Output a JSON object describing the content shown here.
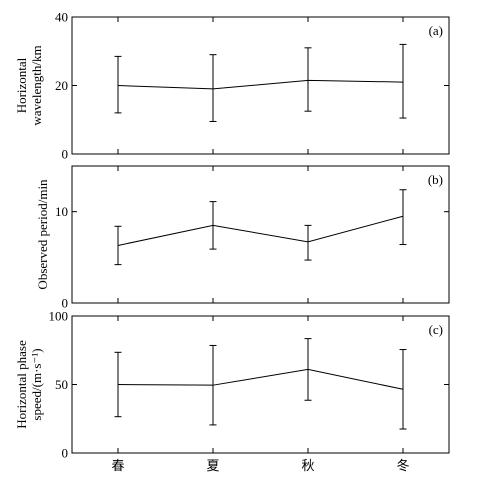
{
  "chart_data": [
    {
      "type": "line",
      "panel_label": "(a)",
      "ylabel_lines": [
        "Horizontal",
        "wavelength/km"
      ],
      "ylim": [
        0,
        40
      ],
      "yticks": [
        "0",
        "20",
        "40"
      ],
      "ytick_values": [
        0,
        20,
        40
      ],
      "categories": [
        "春",
        "夏",
        "秋",
        "冬"
      ],
      "values": [
        20,
        19,
        21.5,
        21
      ],
      "error_lower": [
        12,
        9.5,
        12.5,
        10.5
      ],
      "error_upper": [
        28.5,
        29,
        31,
        32
      ],
      "grid": false
    },
    {
      "type": "line",
      "panel_label": "(b)",
      "ylabel_lines": [
        "Observed period/min"
      ],
      "ylim": [
        0,
        15
      ],
      "yticks": [
        "0",
        "10"
      ],
      "ytick_values": [
        0,
        10
      ],
      "categories": [
        "春",
        "夏",
        "秋",
        "冬"
      ],
      "values": [
        6.3,
        8.5,
        6.7,
        9.5
      ],
      "error_lower": [
        4.2,
        5.9,
        4.7,
        6.4
      ],
      "error_upper": [
        8.4,
        11.1,
        8.5,
        12.4
      ],
      "grid": false
    },
    {
      "type": "line",
      "panel_label": "(c)",
      "ylabel_lines": [
        "Horizontal phase",
        "speed/(m·s⁻¹)"
      ],
      "ylim": [
        0,
        100
      ],
      "yticks": [
        "0",
        "50",
        "100"
      ],
      "ytick_values": [
        0,
        50,
        100
      ],
      "categories": [
        "春",
        "夏",
        "秋",
        "冬"
      ],
      "values": [
        50,
        49.5,
        61,
        46.5
      ],
      "error_lower": [
        26.5,
        20.5,
        38.5,
        17.5
      ],
      "error_upper": [
        73.5,
        78.5,
        83.5,
        75.5
      ],
      "grid": false
    }
  ]
}
